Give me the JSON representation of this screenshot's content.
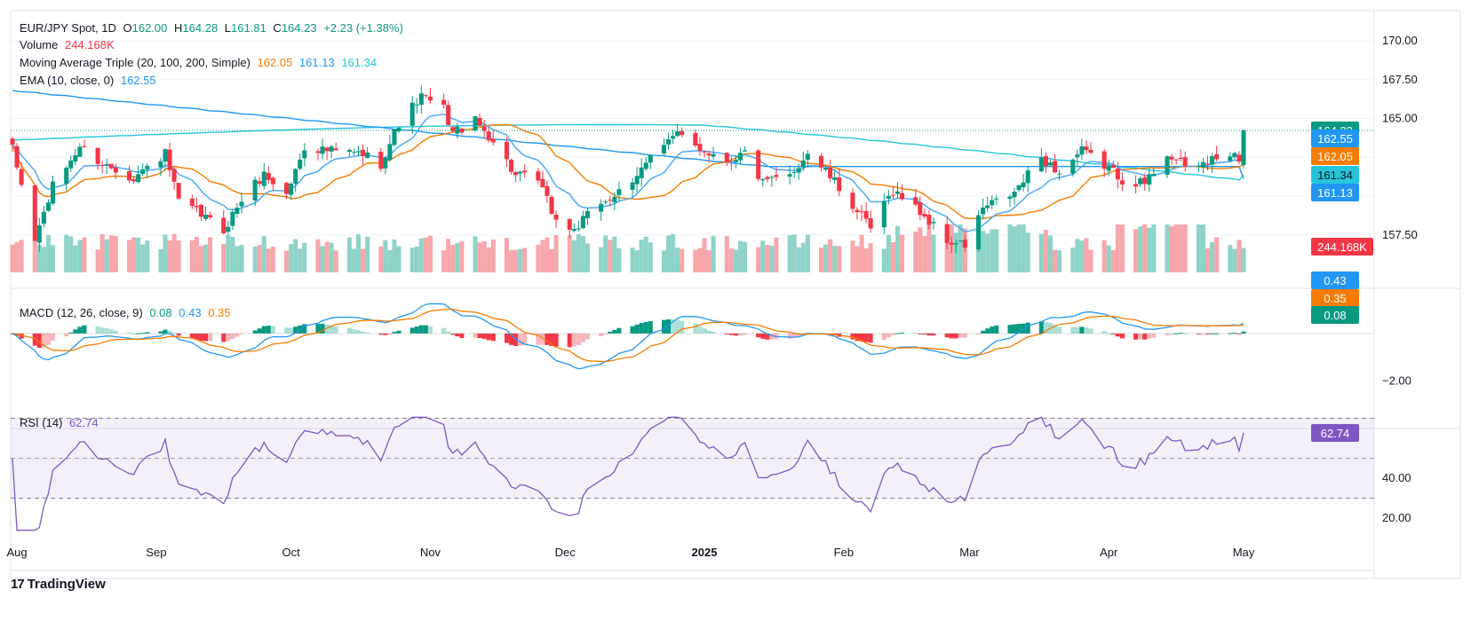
{
  "legend": {
    "symbol": "EUR/JPY Spot, 1D",
    "ohlc": {
      "o_label": "O",
      "o": "162.00",
      "h_label": "H",
      "h": "164.28",
      "l_label": "L",
      "l": "161.81",
      "c_label": "C",
      "c": "164.23",
      "change": "+2.23 (+1.38%)"
    },
    "volume_label": "Volume",
    "volume_value": "244.168K",
    "ma_label": "Moving Average Triple (20, 100, 200, Simple)",
    "ma20": "162.05",
    "ma100": "161.13",
    "ma200": "161.34",
    "ema_label": "EMA (10, close, 0)",
    "ema_value": "162.55",
    "macd_label": "MACD (12, 26, close, 9)",
    "macd_hist": "0.08",
    "macd_line": "0.43",
    "macd_signal": "0.35",
    "rsi_label": "RSI (14)",
    "rsi_value": "62.74"
  },
  "price_axis": [
    "170.00",
    "167.50",
    "165.00",
    "157.50"
  ],
  "macd_axis": [
    "−2.00"
  ],
  "rsi_axis": [
    "40.00",
    "20.00"
  ],
  "time_axis": [
    "Aug",
    "Sep",
    "Oct",
    "Nov",
    "Dec",
    "2025",
    "Feb",
    "Mar",
    "Apr",
    "May"
  ],
  "badges": {
    "price": "164.23",
    "ema": "162.55",
    "ma20": "162.05",
    "ma200": "161.34",
    "ma100": "161.13",
    "volume": "244.168K",
    "macd_line": "0.43",
    "macd_signal": "0.35",
    "macd_hist": "0.08",
    "rsi": "62.74"
  },
  "colors": {
    "up": "#089981",
    "down": "#f23645",
    "up_vol": "#8fd3c8",
    "down_vol": "#f7a7ab",
    "ma20": "#f57c00",
    "ma100": "#2196f3",
    "ma200": "#26c6da",
    "ema": "#2196f3",
    "rsi": "#7e57c2",
    "macd": "#2196f3",
    "signal": "#f57c00"
  },
  "footer": {
    "brand": "TradingView",
    "brand_mark": "17"
  },
  "chart_data": {
    "type": "candlestick",
    "title": "EUR/JPY Spot, 1D",
    "x_range": [
      "2024-07-31",
      "2025-05-01"
    ],
    "price_ylim": [
      155.2,
      171.2
    ],
    "rsi_ylim": [
      13.0,
      71.5
    ],
    "rsi_levels": [
      70,
      50,
      30
    ],
    "macd_ylim": [
      -3.7,
      1.9
    ],
    "ma_end": {
      "ma20": 162.05,
      "ma100": 161.13,
      "ma200": 161.34,
      "ema10": 162.55
    },
    "macd_end": {
      "macd": 0.43,
      "signal": 0.35,
      "hist": 0.08
    },
    "rsi_end": 62.74,
    "volume_end": 244168,
    "close_anchors": [
      [
        "2024-07-31",
        163.0
      ],
      [
        "2024-08-05",
        157.2
      ],
      [
        "2024-08-09",
        160.6
      ],
      [
        "2024-08-15",
        163.2
      ],
      [
        "2024-08-20",
        162.1
      ],
      [
        "2024-08-27",
        161.2
      ],
      [
        "2024-09-03",
        162.7
      ],
      [
        "2024-09-06",
        159.6
      ],
      [
        "2024-09-11",
        158.8
      ],
      [
        "2024-09-16",
        157.8
      ],
      [
        "2024-09-20",
        159.8
      ],
      [
        "2024-09-25",
        161.4
      ],
      [
        "2024-09-30",
        160.1
      ],
      [
        "2024-10-04",
        163.2
      ],
      [
        "2024-10-10",
        162.9
      ],
      [
        "2024-10-17",
        162.7
      ],
      [
        "2024-10-21",
        162.1
      ],
      [
        "2024-10-25",
        164.7
      ],
      [
        "2024-10-30",
        166.4
      ],
      [
        "2024-11-04",
        165.6
      ],
      [
        "2024-11-06",
        164.1
      ],
      [
        "2024-11-11",
        164.8
      ],
      [
        "2024-11-15",
        163.6
      ],
      [
        "2024-11-20",
        161.3
      ],
      [
        "2024-11-25",
        161.0
      ],
      [
        "2024-11-29",
        158.4
      ],
      [
        "2024-12-03",
        157.8
      ],
      [
        "2024-12-09",
        159.6
      ],
      [
        "2024-12-16",
        160.6
      ],
      [
        "2024-12-20",
        162.9
      ],
      [
        "2024-12-26",
        163.9
      ],
      [
        "2024-12-31",
        163.1
      ],
      [
        "2025-01-06",
        162.3
      ],
      [
        "2025-01-10",
        162.8
      ],
      [
        "2025-01-14",
        160.8
      ],
      [
        "2025-01-20",
        161.3
      ],
      [
        "2025-01-24",
        162.8
      ],
      [
        "2025-01-28",
        161.6
      ],
      [
        "2025-02-03",
        159.4
      ],
      [
        "2025-02-07",
        157.9
      ],
      [
        "2025-02-12",
        160.4
      ],
      [
        "2025-02-18",
        159.0
      ],
      [
        "2025-02-24",
        157.1
      ],
      [
        "2025-02-28",
        156.8
      ],
      [
        "2025-03-04",
        159.2
      ],
      [
        "2025-03-11",
        160.2
      ],
      [
        "2025-03-17",
        162.5
      ],
      [
        "2025-03-21",
        161.5
      ],
      [
        "2025-03-26",
        162.9
      ],
      [
        "2025-04-01",
        161.8
      ],
      [
        "2025-04-04",
        161.1
      ],
      [
        "2025-04-09",
        160.8
      ],
      [
        "2025-04-14",
        162.8
      ],
      [
        "2025-04-18",
        161.8
      ],
      [
        "2025-04-24",
        162.3
      ],
      [
        "2025-04-29",
        162.6
      ],
      [
        "2025-04-30",
        162.0
      ],
      [
        "2025-05-01",
        164.23
      ]
    ],
    "last_candle": {
      "date": "2025-05-01",
      "open": 162.0,
      "high": 164.28,
      "low": 161.81,
      "close": 164.23
    }
  }
}
